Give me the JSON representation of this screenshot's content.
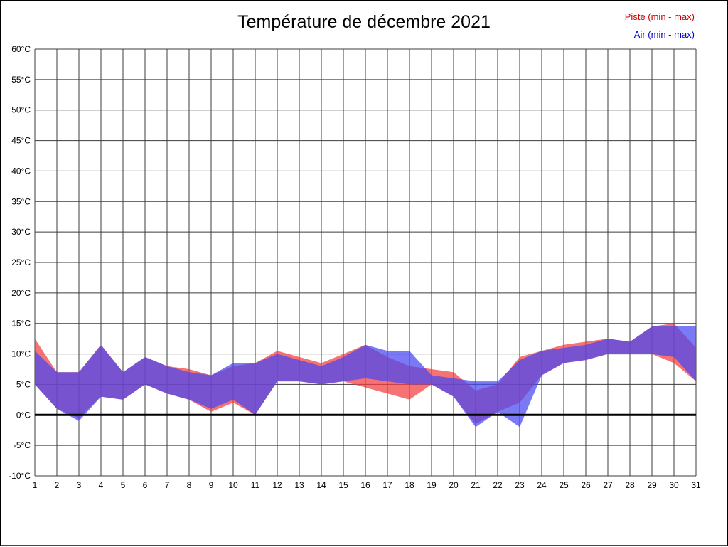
{
  "page": {
    "title": "Température de décembre 2021",
    "legend": [
      {
        "label": "Piste (min - max)",
        "color": "#cc0000"
      },
      {
        "label": "Air (min - max)",
        "color": "#0000cc"
      }
    ]
  },
  "chart_data": {
    "type": "area",
    "title": "Température de décembre 2021",
    "xlabel": "",
    "ylabel": "",
    "ylim": [
      -10,
      60
    ],
    "ytick_step": 5,
    "grid": true,
    "zero_line": true,
    "legend_position": "top-right",
    "x": [
      1,
      2,
      3,
      4,
      5,
      6,
      7,
      8,
      9,
      10,
      11,
      12,
      13,
      14,
      15,
      16,
      17,
      18,
      19,
      20,
      21,
      22,
      23,
      24,
      25,
      26,
      27,
      28,
      29,
      30,
      31
    ],
    "xtick_labels": [
      "1",
      "2",
      "3",
      "4",
      "5",
      "6",
      "7",
      "8",
      "9",
      "10",
      "11",
      "12",
      "13",
      "14",
      "15",
      "16",
      "17",
      "18",
      "19",
      "20",
      "21",
      "22",
      "23",
      "24",
      "25",
      "26",
      "27",
      "28",
      "29",
      "30",
      "31"
    ],
    "ytick_labels": [
      "60°C",
      "55°C",
      "50°C",
      "45°C",
      "40°C",
      "35°C",
      "30°C",
      "25°C",
      "20°C",
      "15°C",
      "10°C",
      "5°C",
      "0°C",
      "-5°C",
      "-10°C"
    ],
    "series": [
      {
        "key": "piste",
        "name": "Piste (min - max)",
        "fill": "rgba(244,60,60,0.72)",
        "max": [
          12.5,
          7,
          7,
          11.5,
          7,
          9.5,
          8,
          7.5,
          6.5,
          8,
          8.5,
          10.5,
          9.5,
          8.5,
          10,
          11.5,
          9.5,
          8,
          7.5,
          7,
          4,
          5,
          9.5,
          10.5,
          11.5,
          12,
          12.5,
          12,
          14.5,
          15,
          11
        ],
        "min": [
          5,
          1,
          -0.5,
          3,
          2.5,
          5,
          3.5,
          2.5,
          0.5,
          2,
          0,
          5.5,
          5.5,
          5,
          5.5,
          4.5,
          3.5,
          2.5,
          5,
          3,
          -1.5,
          0.5,
          2,
          6.5,
          8.5,
          9,
          10,
          10,
          10,
          8.5,
          5.5
        ]
      },
      {
        "key": "air",
        "name": "Air (min - max)",
        "fill": "rgba(70,70,244,0.72)",
        "max": [
          10.5,
          7,
          7,
          11.5,
          7,
          9.5,
          8,
          7,
          6.5,
          8.5,
          8.5,
          10,
          9,
          8,
          9.5,
          11.5,
          10.5,
          10.5,
          6.5,
          6,
          5.5,
          5.5,
          9,
          10.5,
          11,
          11.5,
          12.5,
          12,
          14.5,
          14.5,
          14.5
        ],
        "min": [
          5,
          1,
          -1,
          3,
          2.5,
          5,
          3.5,
          2.5,
          1,
          2.5,
          0,
          5.5,
          5.5,
          5,
          5.5,
          6,
          5.5,
          5,
          5,
          3,
          -2,
          0.5,
          -2,
          6.5,
          8.5,
          9,
          10,
          10,
          10,
          9.5,
          5.5
        ]
      }
    ]
  }
}
